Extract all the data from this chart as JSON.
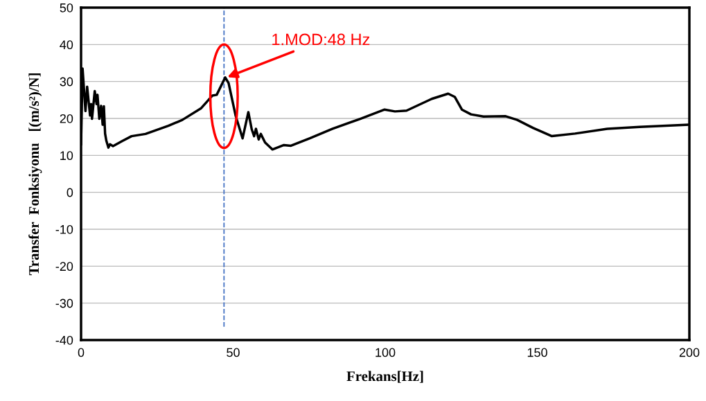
{
  "chart_data": {
    "type": "line",
    "xlabel": "Frekans[Hz]",
    "ylabel": "Transfer  Fonksiyonu   [(m/s²)/N]",
    "x": [
      0,
      0.5,
      1.45,
      2.0,
      2.96,
      3.3,
      3.6,
      4.5,
      5.1,
      5.4,
      6.0,
      6.6,
      7.1,
      7.5,
      7.9,
      8.3,
      9.0,
      9.5,
      10.5,
      13.6,
      16.6,
      21.2,
      28.7,
      33.3,
      39.4,
      43.2,
      44.6,
      47.4,
      48.5,
      50.8,
      53.1,
      55.0,
      56.1,
      56.9,
      57.5,
      58.4,
      59.1,
      60.5,
      62.9,
      66.7,
      69.0,
      75.1,
      82.7,
      91.8,
      99.8,
      103.2,
      107.0,
      115.3,
      120.7,
      122.9,
      125.2,
      128.2,
      132.3,
      139.6,
      143.4,
      148.7,
      154.8,
      162.4,
      173.0,
      183.6,
      200
    ],
    "series": [
      {
        "color": "#000000",
        "values": [
          13,
          33.5,
          22,
          28.6,
          20.8,
          23.9,
          19.9,
          27.4,
          23.9,
          26.4,
          19.9,
          23.4,
          18.3,
          23.3,
          15.9,
          14,
          12.1,
          13,
          12.5,
          13.9,
          15.2,
          15.8,
          18,
          19.6,
          22.7,
          26.2,
          26.4,
          31.1,
          29.6,
          20.8,
          14.6,
          21.7,
          17.1,
          15.2,
          17.2,
          14.3,
          15.8,
          13.5,
          11.6,
          12.8,
          12.6,
          14.6,
          17.2,
          19.9,
          22.4,
          21.9,
          22.1,
          25.3,
          26.7,
          25.8,
          22.4,
          21.1,
          20.5,
          20.6,
          19.6,
          17.4,
          15.2,
          15.9,
          17.2,
          17.7,
          18.3
        ]
      }
    ],
    "xlim": [
      0,
      200
    ],
    "xticks": [
      0,
      50,
      100,
      150,
      200
    ],
    "ylim": [
      -40,
      50
    ],
    "yticks": [
      -40,
      -30,
      -20,
      -10,
      0,
      10,
      20,
      30,
      40,
      50
    ],
    "grid": "y",
    "legend": false,
    "marker": "none",
    "line_style": "solid",
    "ref_lines": [
      {
        "axis": "x",
        "value": 47,
        "color": "#4472c4",
        "line_style": "dashed"
      }
    ],
    "annotations": [
      {
        "text": "1.MOD:48 Hz",
        "x": 47.5,
        "y": 31
      }
    ]
  }
}
